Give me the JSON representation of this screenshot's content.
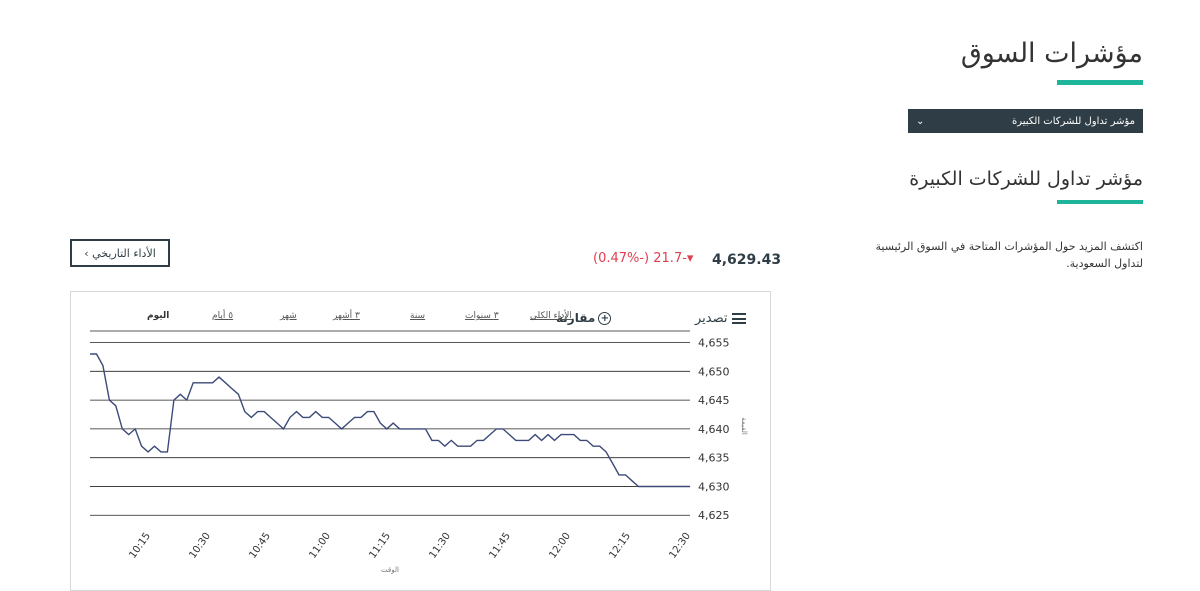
{
  "page": {
    "title": "مؤشرات السوق",
    "dropdown_label": "مؤشر تداول للشركات الكبيرة",
    "section_title": "مؤشر تداول للشركات الكبيرة",
    "description": "اكتشف المزيد حول المؤشرات المتاحة في السوق الرئيسية لتداول السعودية."
  },
  "summary": {
    "history_button": "الأداء التاريخي ›",
    "index_value": "4,629.43",
    "change": "(0.47%-) 21.7-▾",
    "change_color": "#e03f4f"
  },
  "toolbar": {
    "export_label": "تصدير",
    "compare_label": "مقارنة",
    "ranges": [
      "الأداء الكلي",
      "٣ سنوات",
      "سنة",
      "٣ أشهر",
      "شهر",
      "٥ أيام",
      "اليوم"
    ],
    "active_range": "اليوم"
  },
  "chart_data": {
    "type": "line",
    "xlabel": "الوقت",
    "ylabel": "القيمة",
    "x_ticks": [
      "10:15",
      "10:30",
      "10:45",
      "11:00",
      "11:15",
      "11:30",
      "11:45",
      "12:00",
      "12:15",
      "12:30"
    ],
    "y_ticks": [
      4625,
      4630,
      4635,
      4640,
      4645,
      4650,
      4655
    ],
    "ylim": [
      4624,
      4657
    ],
    "series": [
      {
        "values": [
          4653,
          4653,
          4651,
          4645,
          4644,
          4640,
          4639,
          4640,
          4637,
          4636,
          4637,
          4636,
          4636,
          4645,
          4646,
          4645,
          4648,
          4648,
          4648,
          4648,
          4649,
          4648,
          4647,
          4646,
          4643,
          4642,
          4643,
          4643,
          4642,
          4641,
          4640,
          4642,
          4643,
          4642,
          4642,
          4643,
          4642,
          4642,
          4641,
          4640,
          4641,
          4642,
          4642,
          4643,
          4643,
          4641,
          4640,
          4641,
          4640,
          4640,
          4640,
          4640,
          4640,
          4638,
          4638,
          4637,
          4638,
          4637,
          4637,
          4637,
          4638,
          4638,
          4639,
          4640,
          4640,
          4639,
          4638,
          4638,
          4638,
          4639,
          4638,
          4639,
          4638,
          4639,
          4639,
          4639,
          4638,
          4638,
          4637,
          4637,
          4636,
          4634,
          4632,
          4632,
          4631,
          4630,
          4630,
          4630,
          4630,
          4630,
          4630,
          4630,
          4630,
          4630
        ],
        "color": "#3b4a78"
      }
    ]
  }
}
